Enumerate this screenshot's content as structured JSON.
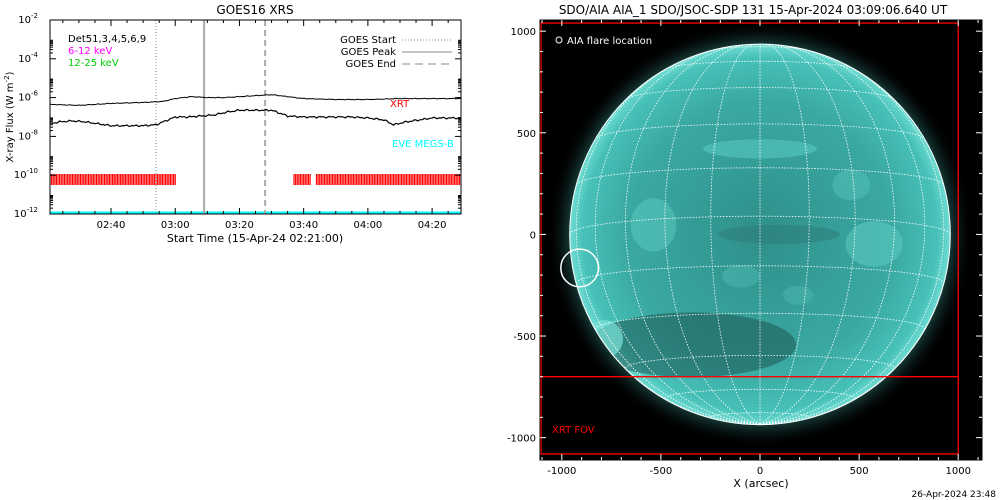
{
  "chart_data": [
    {
      "type": "line",
      "title": "GOES16 XRS",
      "xlabel": "Start Time (15-Apr-24 02:21:00)",
      "ylabel_main": "X-ray Flux (W m",
      "ylabel_exp": "-2",
      "ylabel_tail": ")",
      "y_scale": "log",
      "ylim": [
        1e-12,
        0.01
      ],
      "xlim": [
        "02:21",
        "04:29"
      ],
      "ytick_exponents": [
        "-12",
        "-10",
        "-8",
        "-6",
        "-4",
        "-2"
      ],
      "xticks": [
        "02:40",
        "03:00",
        "03:20",
        "03:40",
        "04:00",
        "04:20"
      ],
      "legend_left": [
        {
          "label": "Det51,3,4,5,6,9",
          "color": "#000000"
        },
        {
          "label": "6-12 keV",
          "color": "#ff00ff"
        },
        {
          "label": "12-25 keV",
          "color": "#00cc00"
        }
      ],
      "legend_right": [
        {
          "label": "GOES Start",
          "style": "dotted"
        },
        {
          "label": "GOES Peak",
          "style": "solid"
        },
        {
          "label": "GOES End",
          "style": "dashed"
        }
      ],
      "event_markers": {
        "start": "02:54",
        "peak": "03:09",
        "end": "03:28"
      },
      "series": [
        {
          "name": "GOES long",
          "color": "#000000",
          "time": [
            "02:21",
            "02:30",
            "02:40",
            "02:50",
            "02:56",
            "03:00",
            "03:05",
            "03:10",
            "03:15",
            "03:20",
            "03:30",
            "03:35",
            "03:40",
            "03:50",
            "04:00",
            "04:10",
            "04:20",
            "04:29"
          ],
          "log_flux": [
            -6.35,
            -6.4,
            -6.3,
            -6.25,
            -6.2,
            -6.05,
            -5.95,
            -6.0,
            -6.0,
            -5.95,
            -5.85,
            -5.95,
            -6.05,
            -6.1,
            -6.1,
            -6.05,
            -6.05,
            -6.05
          ]
        },
        {
          "name": "GOES short",
          "color": "#000000",
          "time": [
            "02:21",
            "02:24",
            "02:28",
            "02:32",
            "02:36",
            "02:40",
            "02:45",
            "02:50",
            "02:54",
            "02:57",
            "03:00",
            "03:04",
            "03:08",
            "03:12",
            "03:16",
            "03:20",
            "03:25",
            "03:30",
            "03:35",
            "03:40",
            "03:45",
            "03:50",
            "03:55",
            "04:00",
            "04:05",
            "04:08",
            "04:12",
            "04:16",
            "04:20",
            "04:24",
            "04:29"
          ],
          "log_flux": [
            -7.35,
            -7.25,
            -7.2,
            -7.25,
            -7.35,
            -7.45,
            -7.45,
            -7.45,
            -7.4,
            -7.2,
            -7.0,
            -7.0,
            -6.95,
            -6.9,
            -6.75,
            -6.65,
            -6.65,
            -6.65,
            -6.95,
            -7.0,
            -7.0,
            -7.0,
            -7.0,
            -7.05,
            -7.15,
            -7.4,
            -7.25,
            -7.15,
            -7.05,
            -7.05,
            -7.05
          ]
        }
      ],
      "annotations": [
        {
          "text": "XRT",
          "color": "#ff0000"
        },
        {
          "text": "EVE MEGS-B",
          "color": "#00ffff"
        }
      ],
      "xrt_coverage": [
        [
          "02:21",
          "03:00"
        ],
        [
          "03:37",
          "03:42"
        ],
        [
          "03:44",
          "04:29"
        ]
      ],
      "eve_line_log_flux": -12
    },
    {
      "type": "image",
      "title": "SDO/AIA AIA_1 SDO/JSOC-SDP 131 15-Apr-2024 03:09:06.640 UT",
      "xlabel": "X (arcsec)",
      "xticks": [
        -1000,
        -500,
        0,
        500,
        1000
      ],
      "yticks": [
        -1000,
        -500,
        0,
        500,
        1000
      ],
      "xlim": [
        -1110,
        1120
      ],
      "ylim": [
        -1110,
        1055
      ],
      "solar_radius_arcsec": 960,
      "disk_color": "#3aa9a2",
      "legend": {
        "text": "AIA flare location",
        "color": "#ffffff"
      },
      "flare_location": {
        "x": -910,
        "y": -165,
        "radius": 95
      },
      "xrt_fov_label": "XRT FOV",
      "xrt_fov_color": "#ff0000",
      "xrt_fov": {
        "x0": -1110,
        "x1": 1000,
        "y0": -1080,
        "y1": 1040
      },
      "xrt_fov_inner_y": -700,
      "timestamp": "26-Apr-2024 23:48"
    }
  ]
}
